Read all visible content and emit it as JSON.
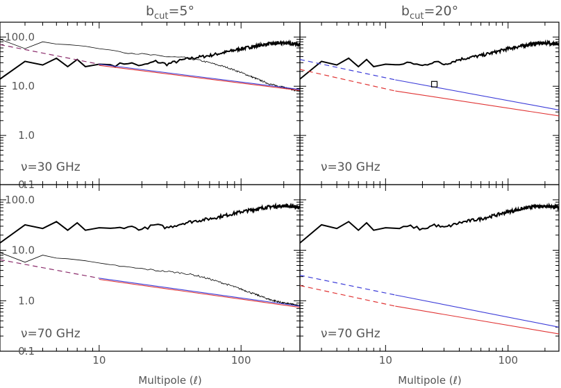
{
  "figure": {
    "column_titles": [
      {
        "base": "b",
        "sub": "cut",
        "value": "=5°"
      },
      {
        "base": "b",
        "sub": "cut",
        "value": "=20°"
      }
    ],
    "xlabel": "Multipole  (ℓ)",
    "x_ticklabels": [
      "10",
      "100"
    ],
    "y_ticklabels": [
      "0.1",
      "1.0",
      "10.0",
      "100.0"
    ]
  },
  "colors": {
    "axes": "#000000",
    "text": "#555555",
    "blue": "#3a3ad8",
    "red": "#e03232",
    "purple": "#8a2a6a"
  },
  "chart_data": [
    {
      "type": "line",
      "panel": "top-left",
      "label": "ν=30 GHz",
      "xscale": "log",
      "yscale": "log",
      "xlim": [
        2,
        260
      ],
      "ylim": [
        0.1,
        200
      ],
      "series": [
        {
          "style": "thick-black",
          "x": [
            2,
            3,
            4,
            5,
            6,
            7,
            8,
            10,
            13,
            16,
            20,
            25,
            30,
            40,
            50,
            60,
            80,
            100,
            130,
            160,
            200,
            230,
            260
          ],
          "y": [
            14,
            32,
            27,
            37,
            25,
            35,
            25,
            28,
            27,
            30,
            26,
            32,
            28,
            35,
            39,
            42,
            50,
            58,
            66,
            73,
            76,
            74,
            70
          ]
        },
        {
          "style": "thin-black",
          "x": [
            2,
            3,
            4,
            5,
            6,
            8,
            10,
            13,
            16,
            20,
            25,
            30,
            40,
            50,
            60,
            80,
            100,
            130,
            160,
            200,
            230,
            260
          ],
          "y": [
            90,
            58,
            80,
            72,
            70,
            65,
            58,
            53,
            48,
            45,
            42,
            40,
            38,
            34,
            30,
            24,
            19,
            14,
            11,
            9.5,
            8.5,
            8
          ]
        },
        {
          "style": "dashed-purple",
          "x": [
            2,
            10
          ],
          "y": [
            70,
            28
          ]
        },
        {
          "style": "solid-blue",
          "x": [
            10,
            260
          ],
          "y": [
            28,
            8.6
          ]
        },
        {
          "style": "solid-red",
          "x": [
            10,
            260
          ],
          "y": [
            26.5,
            8.2
          ]
        }
      ]
    },
    {
      "type": "line",
      "panel": "top-right",
      "label": "ν=30 GHz",
      "xscale": "log",
      "yscale": "log",
      "xlim": [
        2,
        260
      ],
      "ylim": [
        0.1,
        200
      ],
      "series": [
        {
          "style": "thick-black",
          "x": [
            2,
            3,
            4,
            5,
            6,
            7,
            8,
            10,
            13,
            16,
            20,
            25,
            30,
            40,
            50,
            60,
            80,
            100,
            130,
            160,
            200,
            230,
            260
          ],
          "y": [
            14,
            32,
            27,
            37,
            25,
            35,
            25,
            28,
            27,
            30,
            26,
            32,
            28,
            35,
            39,
            42,
            50,
            58,
            66,
            73,
            76,
            74,
            70
          ]
        },
        {
          "style": "dashed-blue",
          "x": [
            2,
            12
          ],
          "y": [
            35,
            13.5
          ]
        },
        {
          "style": "solid-blue",
          "x": [
            12,
            260
          ],
          "y": [
            13.5,
            3.3
          ]
        },
        {
          "style": "dashed-red",
          "x": [
            2,
            12
          ],
          "y": [
            22,
            8
          ]
        },
        {
          "style": "solid-red",
          "x": [
            12,
            260
          ],
          "y": [
            8,
            2.5
          ]
        },
        {
          "style": "square-marker",
          "x": [
            25
          ],
          "y": [
            11
          ]
        }
      ]
    },
    {
      "type": "line",
      "panel": "bottom-left",
      "label": "ν=70 GHz",
      "xscale": "log",
      "yscale": "log",
      "xlim": [
        2,
        260
      ],
      "ylim": [
        0.1,
        200
      ],
      "series": [
        {
          "style": "thick-black",
          "x": [
            2,
            3,
            4,
            5,
            6,
            7,
            8,
            10,
            13,
            16,
            20,
            25,
            30,
            40,
            50,
            60,
            80,
            100,
            130,
            160,
            200,
            230,
            260
          ],
          "y": [
            14,
            32,
            27,
            37,
            25,
            35,
            25,
            28,
            27,
            30,
            26,
            32,
            28,
            35,
            39,
            42,
            50,
            58,
            66,
            73,
            76,
            74,
            70
          ]
        },
        {
          "style": "thin-black",
          "x": [
            2,
            3,
            4,
            5,
            6,
            8,
            10,
            13,
            16,
            20,
            25,
            30,
            40,
            50,
            60,
            80,
            100,
            130,
            160,
            200,
            230,
            260
          ],
          "y": [
            9,
            5.8,
            8,
            7,
            6.8,
            6.2,
            5.6,
            5,
            4.6,
            4.3,
            4,
            3.8,
            3.5,
            3.1,
            2.7,
            2.1,
            1.7,
            1.3,
            1.05,
            0.9,
            0.85,
            0.8
          ]
        },
        {
          "style": "dashed-purple",
          "x": [
            2,
            10
          ],
          "y": [
            6.5,
            2.8
          ]
        },
        {
          "style": "solid-blue",
          "x": [
            10,
            260
          ],
          "y": [
            2.8,
            0.78
          ]
        },
        {
          "style": "solid-red",
          "x": [
            10,
            260
          ],
          "y": [
            2.65,
            0.74
          ]
        }
      ]
    },
    {
      "type": "line",
      "panel": "bottom-right",
      "label": "ν=70 GHz",
      "xscale": "log",
      "yscale": "log",
      "xlim": [
        2,
        260
      ],
      "ylim": [
        0.1,
        200
      ],
      "series": [
        {
          "style": "thick-black",
          "x": [
            2,
            3,
            4,
            5,
            6,
            7,
            8,
            10,
            13,
            16,
            20,
            25,
            30,
            40,
            50,
            60,
            80,
            100,
            130,
            160,
            200,
            230,
            260
          ],
          "y": [
            14,
            32,
            27,
            37,
            25,
            35,
            25,
            28,
            27,
            30,
            26,
            32,
            28,
            35,
            39,
            42,
            50,
            58,
            66,
            73,
            76,
            74,
            70
          ]
        },
        {
          "style": "dashed-blue",
          "x": [
            2,
            12
          ],
          "y": [
            3.2,
            1.3
          ]
        },
        {
          "style": "solid-blue",
          "x": [
            12,
            260
          ],
          "y": [
            1.3,
            0.3
          ]
        },
        {
          "style": "dashed-red",
          "x": [
            2,
            12
          ],
          "y": [
            2,
            0.78
          ]
        },
        {
          "style": "solid-red",
          "x": [
            12,
            260
          ],
          "y": [
            0.78,
            0.22
          ]
        }
      ]
    }
  ]
}
